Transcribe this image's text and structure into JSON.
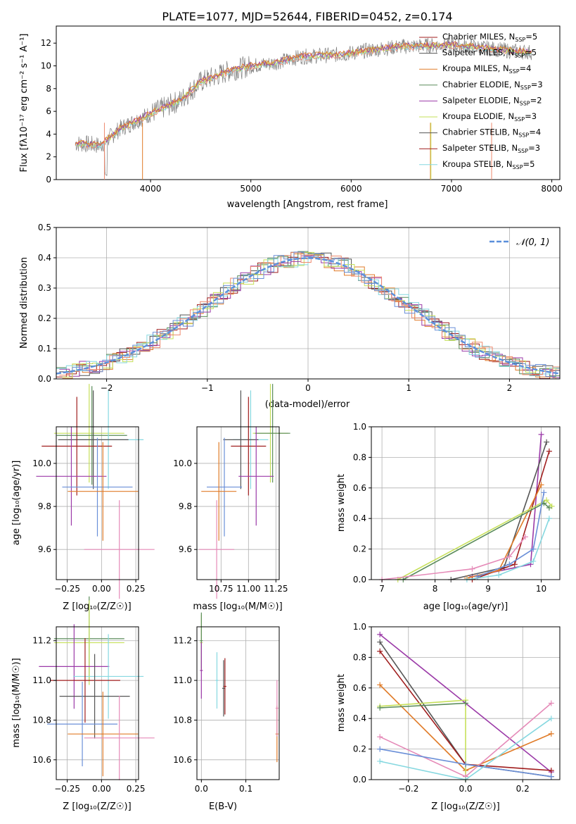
{
  "title": "PLATE=1077, MJD=52644, FIBERID=0452, z=0.174",
  "colors": {
    "blue": "#6a8fd8",
    "orange": "#e07b28",
    "green": "#5a8c5a",
    "purple": "#9b3aa8",
    "lime": "#c6e05a",
    "gray": "#555555",
    "darkred": "#a01e1e",
    "cyan": "#86d8e0",
    "pink": "#e58ab8",
    "salmon": "#ee8a6e",
    "spectrum": "#808080"
  },
  "panel1": {
    "xlabel": "wavelength [Angstrom, rest frame]",
    "ylabel": "Flux [fλ10⁻¹⁷ erg cm⁻² s⁻¹ A⁻¹]",
    "xticks": [
      "4000",
      "5000",
      "6000",
      "7000",
      "8000"
    ],
    "yticks": [
      "0",
      "2",
      "4",
      "6",
      "8",
      "10",
      "12"
    ],
    "legend": [
      {
        "label": "Chabrier MILES, N",
        "sub": "SSP",
        "tail": "=5"
      },
      {
        "label": "Salpeter MILES, N",
        "sub": "SSP",
        "tail": "=5"
      },
      {
        "label": "Kroupa MILES, N",
        "sub": "SSP",
        "tail": "=4"
      },
      {
        "label": "Chabrier ELODIE, N",
        "sub": "SSP",
        "tail": "=3"
      },
      {
        "label": "Salpeter ELODIE, N",
        "sub": "SSP",
        "tail": "=2"
      },
      {
        "label": "Kroupa ELODIE, N",
        "sub": "SSP",
        "tail": "=3"
      },
      {
        "label": "Chabrier STELIB, N",
        "sub": "SSP",
        "tail": "=4"
      },
      {
        "label": "Salpeter STELIB, N",
        "sub": "SSP",
        "tail": "=3"
      },
      {
        "label": "Kroupa STELIB, N",
        "sub": "SSP",
        "tail": "=5"
      }
    ]
  },
  "panel2": {
    "xlabel": "(data-model)/error",
    "ylabel": "Normed distribution",
    "xticks": [
      "−2",
      "−1",
      "0",
      "1",
      "2"
    ],
    "yticks": [
      "0.0",
      "0.1",
      "0.2",
      "0.3",
      "0.4",
      "0.5"
    ],
    "legend_label": "𝒩(0, 1)"
  },
  "panel3": {
    "xlabel": "Z [log₁₀(Z/Z☉)]",
    "ylabel": "age  [log₁₀(age/yr)]",
    "xticks": [
      "−0.25",
      "0.00",
      "0.25"
    ],
    "yticks": [
      "9.6",
      "9.8",
      "10.0"
    ]
  },
  "panel4": {
    "xlabel": "mass [log₁₀(M/M☉)]",
    "xticks": [
      "10.75",
      "11.00",
      "11.25"
    ],
    "yticks": [
      "9.6",
      "9.8",
      "10.0"
    ]
  },
  "panel5": {
    "xlabel": "age  [log₁₀(age/yr)]",
    "ylabel": "mass weight",
    "xticks": [
      "7",
      "8",
      "9",
      "10"
    ],
    "yticks": [
      "0.0",
      "0.2",
      "0.4",
      "0.6",
      "0.8",
      "1.0"
    ]
  },
  "panel6": {
    "xlabel": "Z [log₁₀(Z/Z☉)]",
    "ylabel": "mass [log₁₀(M/M☉)]",
    "xticks": [
      "−0.25",
      "0.00",
      "0.25"
    ],
    "yticks": [
      "10.6",
      "10.8",
      "11.0",
      "11.2"
    ]
  },
  "panel7": {
    "xlabel": "E(B-V)",
    "xticks": [
      "0.0",
      "0.1"
    ],
    "yticks": [
      "10.6",
      "10.8",
      "11.0",
      "11.2"
    ]
  },
  "panel8": {
    "xlabel": "Z [log₁₀(Z/Z☉)]",
    "ylabel": "mass weight",
    "xticks": [
      "−0.2",
      "0.0",
      "0.2"
    ],
    "yticks": [
      "0.0",
      "0.2",
      "0.4",
      "0.6",
      "0.8",
      "1.0"
    ]
  },
  "chart_data": [
    {
      "type": "line",
      "title": "PLATE=1077, MJD=52644, FIBERID=0452, z=0.174",
      "xlabel": "wavelength [Angstrom, rest frame]",
      "ylabel": "Flux [fλ10⁻¹⁷ erg cm⁻² s⁻¹ A⁻¹]",
      "xlim": [
        3060,
        8080
      ],
      "ylim": [
        0,
        13.5
      ],
      "legend_position": "right",
      "series": [
        {
          "name": "data",
          "x": [
            3250,
            3500,
            3700,
            4000,
            4300,
            4500,
            4800,
            5000,
            5200,
            5500,
            5900,
            6200,
            6500,
            6800,
            7000,
            7200,
            7400,
            7600,
            7800
          ],
          "values": [
            3.2,
            3.0,
            4.5,
            5.8,
            7.0,
            8.6,
            9.6,
            10.0,
            10.2,
            10.8,
            11.0,
            11.4,
            11.7,
            11.8,
            11.8,
            11.7,
            11.5,
            11.3,
            11.2
          ]
        }
      ]
    },
    {
      "type": "line",
      "xlabel": "(data-model)/error",
      "ylabel": "Normed distribution",
      "xlim": [
        -2.5,
        2.5
      ],
      "ylim": [
        0,
        0.5
      ],
      "legend_position": "top-right",
      "series": [
        {
          "name": "𝒩(0, 1)",
          "x": [
            -2.5,
            -2,
            -1.5,
            -1,
            -0.5,
            0,
            0.5,
            1,
            1.5,
            2,
            2.5
          ],
          "values": [
            0.018,
            0.054,
            0.13,
            0.242,
            0.352,
            0.399,
            0.352,
            0.242,
            0.13,
            0.054,
            0.018
          ]
        }
      ]
    },
    {
      "type": "scatter",
      "xlabel": "Z [log₁₀(Z/Z☉)]",
      "ylabel": "age  [log₁₀(age/yr)]",
      "xlim": [
        -0.33,
        0.27
      ],
      "ylim": [
        9.46,
        10.17
      ],
      "points": [
        {
          "x": -0.09,
          "y": 10.14,
          "color": "lime"
        },
        {
          "x": -0.07,
          "y": 10.13,
          "color": "green"
        },
        {
          "x": 0.05,
          "y": 10.11,
          "color": "cyan"
        },
        {
          "x": -0.06,
          "y": 10.11,
          "color": "gray"
        },
        {
          "x": -0.18,
          "y": 10.08,
          "color": "darkred"
        },
        {
          "x": -0.22,
          "y": 9.94,
          "color": "purple"
        },
        {
          "x": -0.03,
          "y": 9.89,
          "color": "blue"
        },
        {
          "x": 0.01,
          "y": 9.87,
          "color": "orange"
        },
        {
          "x": 0.13,
          "y": 9.6,
          "color": "pink"
        }
      ]
    },
    {
      "type": "scatter",
      "xlabel": "mass [log₁₀(M/M☉)]",
      "xlim": [
        10.53,
        11.28
      ],
      "ylim": [
        9.46,
        10.17
      ],
      "points": [
        {
          "x": 11.2,
          "y": 10.14,
          "color": "lime"
        },
        {
          "x": 11.22,
          "y": 10.14,
          "color": "green"
        },
        {
          "x": 11.02,
          "y": 10.11,
          "color": "cyan"
        },
        {
          "x": 10.93,
          "y": 10.11,
          "color": "gray"
        },
        {
          "x": 11.0,
          "y": 10.08,
          "color": "darkred"
        },
        {
          "x": 11.07,
          "y": 9.94,
          "color": "purple"
        },
        {
          "x": 10.78,
          "y": 9.89,
          "color": "blue"
        },
        {
          "x": 10.73,
          "y": 9.87,
          "color": "orange"
        },
        {
          "x": 10.71,
          "y": 9.6,
          "color": "pink"
        }
      ]
    },
    {
      "type": "line",
      "xlabel": "age  [log₁₀(age/yr)]",
      "ylabel": "mass weight",
      "xlim": [
        6.8,
        10.35
      ],
      "ylim": [
        0,
        1
      ],
      "series": [
        {
          "name": "",
          "color": "purple",
          "x": [
            8.7,
            9.8,
            10.0
          ],
          "values": [
            0.02,
            0.1,
            0.95
          ]
        },
        {
          "name": "",
          "color": "gray",
          "x": [
            8.3,
            9.3,
            10.1
          ],
          "values": [
            0.0,
            0.08,
            0.9
          ]
        },
        {
          "name": "",
          "color": "darkred",
          "x": [
            8.7,
            9.5,
            10.15
          ],
          "values": [
            0.0,
            0.1,
            0.84
          ]
        },
        {
          "name": "",
          "color": "orange",
          "x": [
            8.6,
            9.2,
            10.0
          ],
          "values": [
            0.01,
            0.06,
            0.62
          ]
        },
        {
          "name": "",
          "color": "lime",
          "x": [
            7.3,
            10.1,
            10.2
          ],
          "values": [
            0.0,
            0.52,
            0.48
          ]
        },
        {
          "name": "",
          "color": "green",
          "x": [
            7.4,
            10.05,
            10.15
          ],
          "values": [
            0.0,
            0.5,
            0.47
          ]
        },
        {
          "name": "",
          "color": "blue",
          "x": [
            8.8,
            9.4,
            9.85,
            10.05
          ],
          "values": [
            0.02,
            0.1,
            0.2,
            0.57
          ]
        },
        {
          "name": "",
          "color": "cyan",
          "x": [
            8.6,
            9.2,
            9.85,
            10.15
          ],
          "values": [
            0.0,
            0.03,
            0.12,
            0.4
          ]
        },
        {
          "name": "",
          "color": "pink",
          "x": [
            7.0,
            8.7,
            9.4,
            9.7
          ],
          "values": [
            0.0,
            0.07,
            0.15,
            0.28
          ]
        }
      ]
    },
    {
      "type": "scatter",
      "xlabel": "Z [log₁₀(Z/Z☉)]",
      "ylabel": "mass [log₁₀(M/M☉)]",
      "xlim": [
        -0.33,
        0.27
      ],
      "ylim": [
        10.5,
        11.27
      ],
      "points": [
        {
          "x": -0.09,
          "y": 11.21,
          "color": "green"
        },
        {
          "x": -0.09,
          "y": 11.19,
          "color": "lime"
        },
        {
          "x": -0.2,
          "y": 11.07,
          "color": "purple"
        },
        {
          "x": 0.05,
          "y": 11.02,
          "color": "cyan"
        },
        {
          "x": -0.12,
          "y": 11.0,
          "color": "darkred"
        },
        {
          "x": -0.05,
          "y": 10.92,
          "color": "gray"
        },
        {
          "x": -0.14,
          "y": 10.78,
          "color": "blue"
        },
        {
          "x": 0.01,
          "y": 10.73,
          "color": "orange"
        },
        {
          "x": 0.13,
          "y": 10.71,
          "color": "pink"
        }
      ]
    },
    {
      "type": "scatter",
      "xlabel": "E(B-V)",
      "xlim": [
        -0.01,
        0.175
      ],
      "ylim": [
        10.5,
        11.27
      ],
      "points": [
        {
          "x": 0.0,
          "y": 11.19,
          "color": "lime"
        },
        {
          "x": 0.0,
          "y": 11.2,
          "color": "green"
        },
        {
          "x": 0.0,
          "y": 11.05,
          "color": "purple"
        },
        {
          "x": 0.035,
          "y": 11.0,
          "color": "cyan"
        },
        {
          "x": 0.05,
          "y": 10.96,
          "color": "gray"
        },
        {
          "x": 0.053,
          "y": 10.97,
          "color": "darkred"
        },
        {
          "x": 0.17,
          "y": 10.73,
          "color": "orange"
        },
        {
          "x": 0.17,
          "y": 10.86,
          "color": "pink"
        }
      ]
    },
    {
      "type": "line",
      "xlabel": "Z [log₁₀(Z/Z☉)]",
      "ylabel": "mass weight",
      "xlim": [
        -0.33,
        0.33
      ],
      "ylim": [
        0,
        1
      ],
      "series": [
        {
          "name": "",
          "color": "purple",
          "x": [
            -0.3,
            0.3
          ],
          "values": [
            0.95,
            0.05
          ]
        },
        {
          "name": "",
          "color": "gray",
          "x": [
            -0.3,
            0.0,
            0.3
          ],
          "values": [
            0.9,
            0.1,
            0.02
          ]
        },
        {
          "name": "",
          "color": "darkred",
          "x": [
            -0.3,
            0.0,
            0.3
          ],
          "values": [
            0.84,
            0.1,
            0.06
          ]
        },
        {
          "name": "",
          "color": "orange",
          "x": [
            -0.3,
            0.0,
            0.3
          ],
          "values": [
            0.62,
            0.06,
            0.3
          ]
        },
        {
          "name": "",
          "color": "lime",
          "x": [
            -0.3,
            0.0,
            0.0
          ],
          "values": [
            0.48,
            0.52,
            0.0
          ]
        },
        {
          "name": "",
          "color": "green",
          "x": [
            -0.3,
            0.0
          ],
          "values": [
            0.47,
            0.5
          ]
        },
        {
          "name": "",
          "color": "pink",
          "x": [
            -0.3,
            0.0,
            0.3
          ],
          "values": [
            0.28,
            0.02,
            0.5
          ]
        },
        {
          "name": "",
          "color": "blue",
          "x": [
            -0.3,
            0.0,
            0.3
          ],
          "values": [
            0.2,
            0.1,
            0.02
          ]
        },
        {
          "name": "",
          "color": "cyan",
          "x": [
            -0.3,
            0.0,
            0.3
          ],
          "values": [
            0.12,
            0.0,
            0.4
          ]
        }
      ]
    }
  ]
}
